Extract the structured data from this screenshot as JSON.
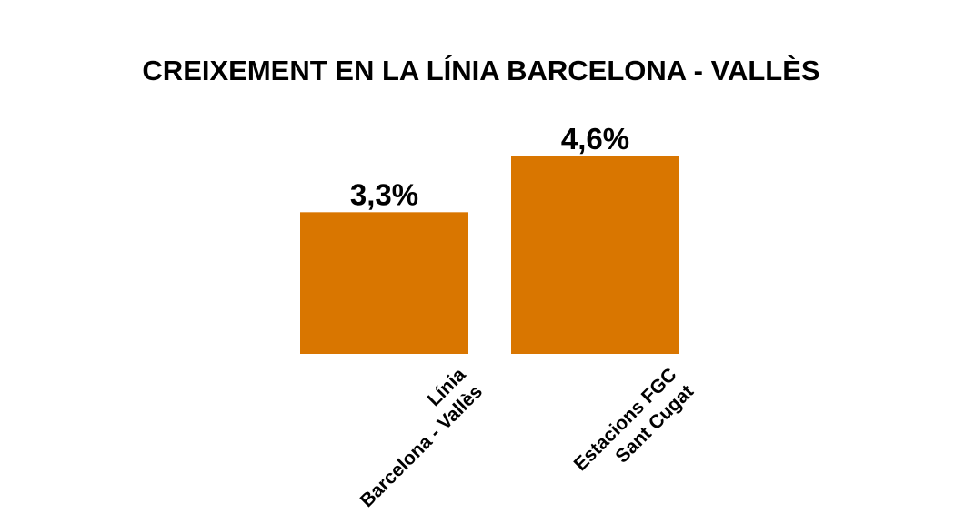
{
  "chart_data": {
    "type": "bar",
    "title": "CREIXEMENT EN LA LÍNIA BARCELONA - VALLÈS",
    "categories": [
      [
        "Línia",
        "Barcelona - Vallès"
      ],
      [
        "Estacions FGC",
        "Sant Cugat"
      ]
    ],
    "values": [
      3.3,
      4.6
    ],
    "value_labels": [
      "3,3%",
      "4,6%"
    ],
    "unit": "%",
    "ylim": [
      0,
      4.6
    ],
    "grid": false,
    "legend": "none",
    "bar_color": "#D97600",
    "text_color": "#000000"
  }
}
